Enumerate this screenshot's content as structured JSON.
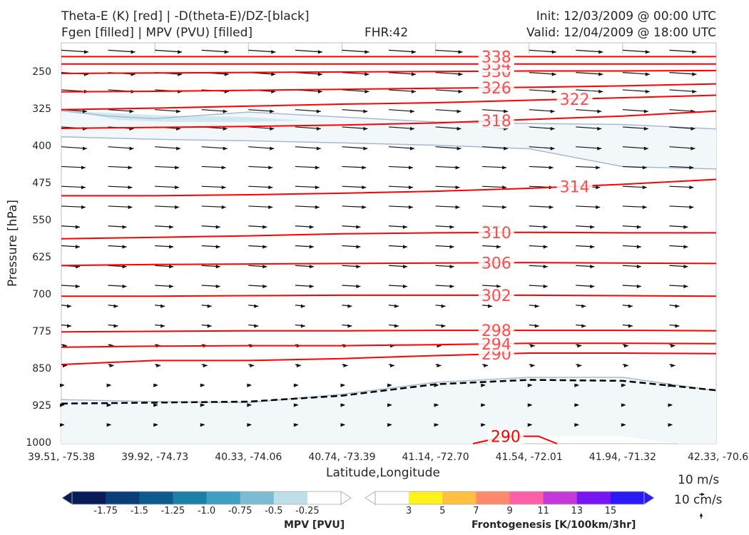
{
  "header": {
    "title_line1": "Theta-E (K) [red] | -D(theta-E)/DZ-[black]",
    "title_line2": "Fgen [filled] | MPV (PVU) [filled]",
    "fhr": "FHR:42",
    "init": "Init: 12/03/2009 @ 00:00 UTC",
    "valid": "Valid: 12/04/2009 @ 18:00 UTC"
  },
  "vector_key": {
    "label_ms": "10 m/s",
    "label_cms": "10 cm/s"
  },
  "chart_data": {
    "type": "cross-section",
    "xlabel": "Latitude,Longitude",
    "ylabel": "Pressure [hPa]",
    "ylim": [
      1000,
      190
    ],
    "y_ticks": [
      "250",
      "325",
      "400",
      "475",
      "550",
      "625",
      "700",
      "775",
      "850",
      "925",
      "1000"
    ],
    "x_ticks": [
      "39.51, -75.38",
      "39.92, -74.73",
      "40.33, -74.06",
      "40.74, -73.39",
      "41.14, -72.70",
      "41.54, -72.01",
      "41.94, -71.32",
      "42.33, -70.6"
    ],
    "theta_e_contours": [
      {
        "label": "290",
        "points": [
          [
            0,
            840
          ],
          [
            1,
            832
          ],
          [
            2,
            832
          ],
          [
            3,
            828
          ],
          [
            4,
            822
          ],
          [
            5,
            817
          ],
          [
            6,
            817
          ],
          [
            7,
            818
          ]
        ]
      },
      {
        "label": "294",
        "points": [
          [
            0,
            805
          ],
          [
            1,
            803
          ],
          [
            2,
            802
          ],
          [
            3,
            802
          ],
          [
            4,
            800
          ],
          [
            5,
            797
          ],
          [
            6,
            797
          ],
          [
            7,
            798
          ]
        ]
      },
      {
        "label": "298",
        "points": [
          [
            0,
            774
          ],
          [
            1,
            773
          ],
          [
            2,
            772
          ],
          [
            3,
            772
          ],
          [
            4,
            771
          ],
          [
            5,
            771
          ],
          [
            6,
            771
          ],
          [
            7,
            772
          ]
        ]
      },
      {
        "label": "302",
        "points": [
          [
            0,
            702
          ],
          [
            1,
            702
          ],
          [
            2,
            701
          ],
          [
            3,
            700
          ],
          [
            4,
            700
          ],
          [
            5,
            700
          ],
          [
            6,
            701
          ],
          [
            7,
            702
          ]
        ]
      },
      {
        "label": "306",
        "points": [
          [
            0,
            640
          ],
          [
            1,
            638
          ],
          [
            2,
            637
          ],
          [
            3,
            636
          ],
          [
            4,
            635
          ],
          [
            5,
            634
          ],
          [
            6,
            635
          ],
          [
            7,
            636
          ]
        ]
      },
      {
        "label": "310",
        "points": [
          [
            0,
            586
          ],
          [
            1,
            583
          ],
          [
            2,
            580
          ],
          [
            3,
            576
          ],
          [
            4,
            574
          ],
          [
            5,
            573
          ],
          [
            6,
            574
          ],
          [
            7,
            574
          ]
        ]
      },
      {
        "label": "314",
        "points": [
          [
            0,
            499
          ],
          [
            1,
            499
          ],
          [
            2,
            497
          ],
          [
            3,
            494
          ],
          [
            4,
            490
          ],
          [
            5,
            484
          ],
          [
            6,
            476
          ],
          [
            7,
            466
          ]
        ]
      },
      {
        "label": "318",
        "points": [
          [
            0,
            363
          ],
          [
            1,
            361
          ],
          [
            2,
            359
          ],
          [
            3,
            356
          ],
          [
            4,
            352
          ],
          [
            5,
            345
          ],
          [
            6,
            338
          ],
          [
            7,
            328
          ]
        ]
      },
      {
        "label": "322",
        "points": [
          [
            0,
            325
          ],
          [
            1,
            322
          ],
          [
            2,
            318
          ],
          [
            3,
            314
          ],
          [
            4,
            311
          ],
          [
            5,
            306
          ],
          [
            6,
            301
          ],
          [
            7,
            296
          ]
        ]
      },
      {
        "label": "326",
        "points": [
          [
            0,
            289
          ],
          [
            1,
            288
          ],
          [
            2,
            286
          ],
          [
            3,
            284
          ],
          [
            4,
            282
          ],
          [
            5,
            280
          ],
          [
            6,
            277
          ],
          [
            7,
            273
          ]
        ]
      },
      {
        "label": "330",
        "points": [
          [
            0,
            252
          ],
          [
            1,
            251
          ],
          [
            2,
            250
          ],
          [
            3,
            249
          ],
          [
            4,
            248
          ],
          [
            5,
            247
          ],
          [
            6,
            247
          ],
          [
            7,
            246
          ]
        ]
      },
      {
        "label": "334",
        "points": [
          [
            0,
            233
          ],
          [
            1,
            233
          ],
          [
            2,
            233
          ],
          [
            3,
            233
          ],
          [
            4,
            233
          ],
          [
            5,
            233
          ],
          [
            6,
            233
          ],
          [
            7,
            233
          ]
        ]
      },
      {
        "label": "338",
        "points": [
          [
            0,
            218
          ],
          [
            1,
            218
          ],
          [
            2,
            218
          ],
          [
            3,
            218
          ],
          [
            4,
            218
          ],
          [
            5,
            218
          ],
          [
            6,
            218
          ],
          [
            7,
            218
          ]
        ]
      },
      {
        "label": "290",
        "points": [
          [
            4.4,
            1000
          ],
          [
            4.75,
            985
          ],
          [
            5.1,
            985
          ],
          [
            5.3,
            1000
          ]
        ]
      }
    ],
    "neg_dthetae_dz_contour": [
      [
        0,
        919
      ],
      [
        1,
        917
      ],
      [
        2,
        915
      ],
      [
        3,
        903
      ],
      [
        4,
        880
      ],
      [
        5,
        871
      ],
      [
        6,
        873
      ],
      [
        7,
        892
      ]
    ],
    "mpv_colorbar": {
      "title": "MPV [PVU]",
      "ticks": [
        "-1.75",
        "-1.5",
        "-1.25",
        "-1.0",
        "-0.75",
        "-0.5",
        "-0.25"
      ],
      "colors": [
        "#081d58",
        "#0b3d79",
        "#0d5a8e",
        "#1b7fa6",
        "#3f9fc0",
        "#7dbbd3",
        "#bfdfe8",
        "#ffffff"
      ]
    },
    "fgen_colorbar": {
      "title": "Frontogenesis [K/100km/3hr]",
      "ticks": [
        "3",
        "5",
        "7",
        "9",
        "11",
        "13",
        "15"
      ],
      "colors": [
        "#ffffff",
        "#fff11a",
        "#ffc041",
        "#ff8a6b",
        "#ff5fa6",
        "#c43ad9",
        "#7617f2",
        "#2a1af5"
      ]
    }
  }
}
